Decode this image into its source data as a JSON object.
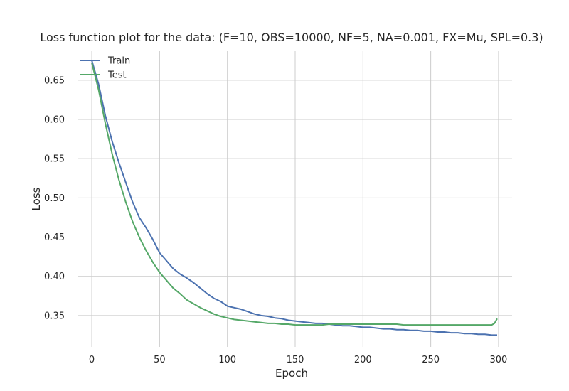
{
  "chart_data": {
    "type": "line",
    "title": "Loss function plot for the data: (F=10, OBS=10000, NF=5, NA=0.001, FX=Mu, SPL=0.3)",
    "xlabel": "Epoch",
    "ylabel": "Loss",
    "xlim": [
      -10,
      310
    ],
    "ylim": [
      0.31,
      0.687
    ],
    "xticks": [
      0,
      50,
      100,
      150,
      200,
      250,
      300
    ],
    "xtick_labels": [
      "0",
      "50",
      "100",
      "150",
      "200",
      "250",
      "300"
    ],
    "yticks": [
      0.35,
      0.4,
      0.45,
      0.5,
      0.55,
      0.6,
      0.65
    ],
    "ytick_labels": [
      "0.35",
      "0.40",
      "0.45",
      "0.50",
      "0.55",
      "0.60",
      "0.65"
    ],
    "grid": true,
    "legend_position": "top-left",
    "series": [
      {
        "name": "Train",
        "color": "#4c72b0",
        "points": [
          [
            0,
            0.675
          ],
          [
            5,
            0.645
          ],
          [
            10,
            0.605
          ],
          [
            15,
            0.572
          ],
          [
            20,
            0.545
          ],
          [
            25,
            0.52
          ],
          [
            30,
            0.495
          ],
          [
            35,
            0.475
          ],
          [
            40,
            0.462
          ],
          [
            45,
            0.447
          ],
          [
            50,
            0.43
          ],
          [
            55,
            0.42
          ],
          [
            60,
            0.41
          ],
          [
            65,
            0.403
          ],
          [
            70,
            0.398
          ],
          [
            75,
            0.392
          ],
          [
            80,
            0.385
          ],
          [
            85,
            0.378
          ],
          [
            90,
            0.372
          ],
          [
            95,
            0.368
          ],
          [
            100,
            0.362
          ],
          [
            105,
            0.36
          ],
          [
            110,
            0.358
          ],
          [
            115,
            0.355
          ],
          [
            120,
            0.352
          ],
          [
            125,
            0.35
          ],
          [
            130,
            0.349
          ],
          [
            135,
            0.347
          ],
          [
            140,
            0.346
          ],
          [
            145,
            0.344
          ],
          [
            150,
            0.343
          ],
          [
            155,
            0.342
          ],
          [
            160,
            0.341
          ],
          [
            165,
            0.34
          ],
          [
            170,
            0.34
          ],
          [
            175,
            0.339
          ],
          [
            180,
            0.338
          ],
          [
            185,
            0.337
          ],
          [
            190,
            0.337
          ],
          [
            195,
            0.336
          ],
          [
            200,
            0.335
          ],
          [
            205,
            0.335
          ],
          [
            210,
            0.334
          ],
          [
            215,
            0.333
          ],
          [
            220,
            0.333
          ],
          [
            225,
            0.332
          ],
          [
            230,
            0.332
          ],
          [
            235,
            0.331
          ],
          [
            240,
            0.331
          ],
          [
            245,
            0.33
          ],
          [
            250,
            0.33
          ],
          [
            255,
            0.329
          ],
          [
            260,
            0.329
          ],
          [
            265,
            0.328
          ],
          [
            270,
            0.328
          ],
          [
            275,
            0.327
          ],
          [
            280,
            0.327
          ],
          [
            285,
            0.326
          ],
          [
            290,
            0.326
          ],
          [
            295,
            0.325
          ],
          [
            299,
            0.325
          ]
        ]
      },
      {
        "name": "Test",
        "color": "#55a868",
        "points": [
          [
            0,
            0.672
          ],
          [
            5,
            0.638
          ],
          [
            10,
            0.595
          ],
          [
            15,
            0.556
          ],
          [
            20,
            0.523
          ],
          [
            25,
            0.495
          ],
          [
            30,
            0.47
          ],
          [
            35,
            0.45
          ],
          [
            40,
            0.433
          ],
          [
            45,
            0.418
          ],
          [
            50,
            0.405
          ],
          [
            55,
            0.395
          ],
          [
            60,
            0.385
          ],
          [
            65,
            0.378
          ],
          [
            70,
            0.37
          ],
          [
            75,
            0.365
          ],
          [
            80,
            0.36
          ],
          [
            85,
            0.356
          ],
          [
            90,
            0.352
          ],
          [
            95,
            0.349
          ],
          [
            100,
            0.347
          ],
          [
            105,
            0.345
          ],
          [
            110,
            0.344
          ],
          [
            115,
            0.343
          ],
          [
            120,
            0.342
          ],
          [
            125,
            0.341
          ],
          [
            130,
            0.34
          ],
          [
            135,
            0.34
          ],
          [
            140,
            0.339
          ],
          [
            145,
            0.339
          ],
          [
            150,
            0.338
          ],
          [
            155,
            0.338
          ],
          [
            160,
            0.338
          ],
          [
            165,
            0.338
          ],
          [
            170,
            0.338
          ],
          [
            175,
            0.339
          ],
          [
            180,
            0.339
          ],
          [
            185,
            0.339
          ],
          [
            190,
            0.339
          ],
          [
            195,
            0.339
          ],
          [
            200,
            0.339
          ],
          [
            205,
            0.339
          ],
          [
            210,
            0.339
          ],
          [
            215,
            0.339
          ],
          [
            220,
            0.339
          ],
          [
            225,
            0.339
          ],
          [
            230,
            0.338
          ],
          [
            235,
            0.338
          ],
          [
            240,
            0.338
          ],
          [
            245,
            0.338
          ],
          [
            250,
            0.338
          ],
          [
            255,
            0.338
          ],
          [
            260,
            0.338
          ],
          [
            265,
            0.338
          ],
          [
            270,
            0.338
          ],
          [
            275,
            0.338
          ],
          [
            280,
            0.338
          ],
          [
            285,
            0.338
          ],
          [
            290,
            0.338
          ],
          [
            295,
            0.338
          ],
          [
            297,
            0.34
          ],
          [
            299,
            0.346
          ]
        ]
      }
    ]
  }
}
